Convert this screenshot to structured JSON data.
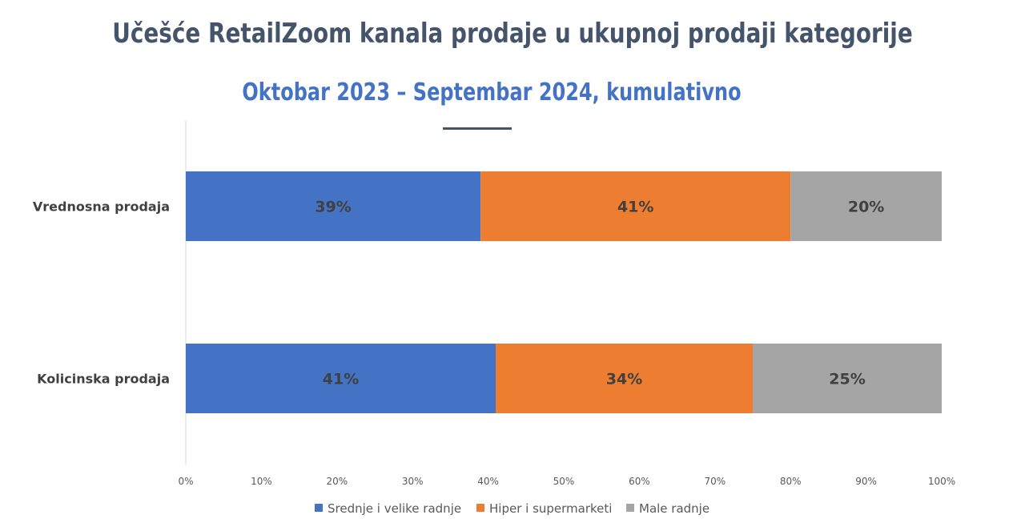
{
  "chart_data": {
    "type": "bar",
    "orientation": "horizontal",
    "stacked": "percent",
    "title": "Učešće RetailZoom kanala prodaje u ukupnoj prodaji kategorije",
    "subtitle": "Oktobar 2023 – Septembar 2024, kumulativno",
    "categories": [
      "Vrednosna prodaja",
      "Kolicinska prodaja"
    ],
    "series": [
      {
        "name": "Srednje i velike radnje",
        "color": "#4472c4",
        "values": [
          39,
          41
        ],
        "labels": [
          "39%",
          "41%"
        ]
      },
      {
        "name": "Hiper i supermarketi",
        "color": "#ed7d31",
        "values": [
          41,
          34
        ],
        "labels": [
          "41%",
          "34%"
        ]
      },
      {
        "name": "Male radnje",
        "color": "#a5a5a5",
        "values": [
          20,
          25
        ],
        "labels": [
          "20%",
          "25%"
        ]
      }
    ],
    "xlim": [
      0,
      100
    ],
    "xticks": [
      "0%",
      "10%",
      "20%",
      "30%",
      "40%",
      "50%",
      "60%",
      "70%",
      "80%",
      "90%",
      "100%"
    ],
    "grid": false,
    "legend": "bottom"
  }
}
